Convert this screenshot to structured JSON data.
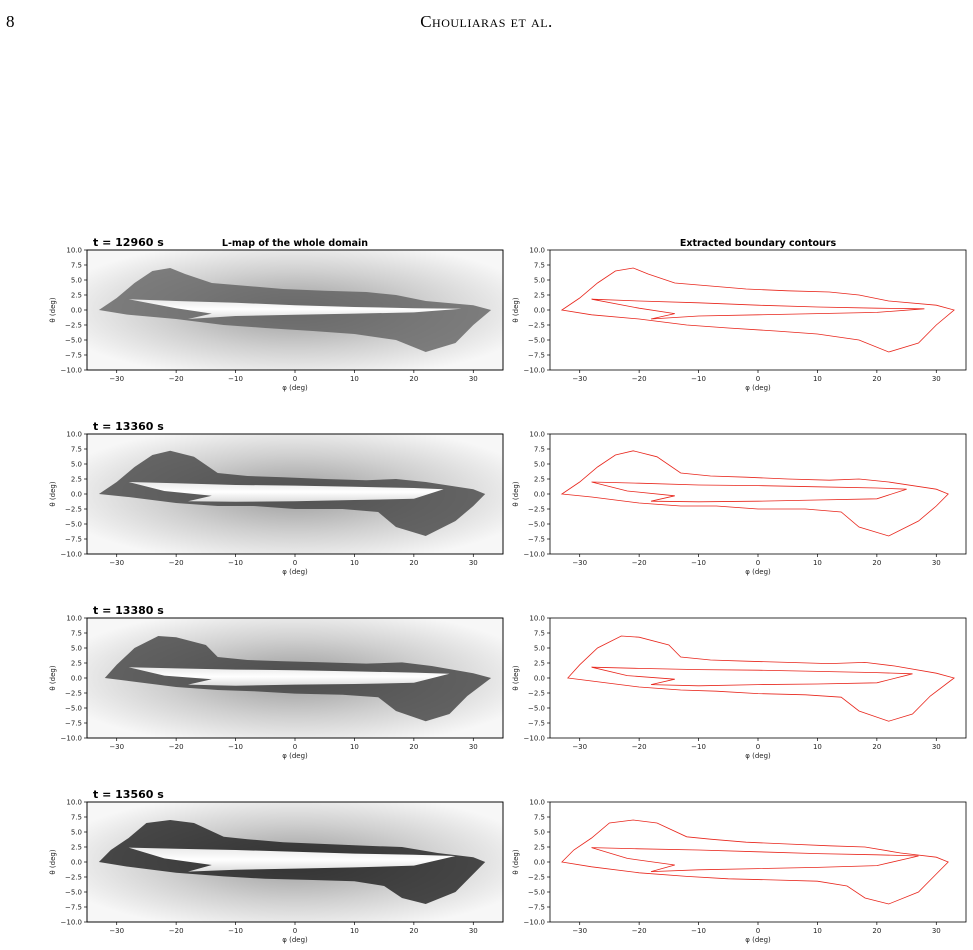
{
  "page": {
    "number": "8",
    "running_head": "Chouliaras et al."
  },
  "figure": {
    "column_titles": [
      "L-map of the whole domain",
      "Extracted boundary contours"
    ],
    "panels": [
      {
        "time_label": "t = 12960 s"
      },
      {
        "time_label": "t = 13360 s"
      },
      {
        "time_label": "t = 13380 s"
      },
      {
        "time_label": "t = 13560 s"
      }
    ],
    "contour_color": "#e8261c"
  },
  "chart_data": [
    {
      "type": "heatmap",
      "title": "L-map of the whole domain",
      "xlabel": "φ (deg)",
      "ylabel": "θ (deg)",
      "xlim": [
        -35,
        35
      ],
      "ylim": [
        -10,
        10
      ],
      "x_ticks": [
        "−30",
        "−20",
        "−10",
        "0",
        "10",
        "20",
        "30"
      ],
      "y_ticks": [
        "10.0",
        "7.5",
        "5.0",
        "2.5",
        "0.0",
        "−2.5",
        "−5.0",
        "−7.5",
        "−10.0"
      ],
      "panels": [
        "t = 12960 s",
        "t = 13360 s",
        "t = 13380 s",
        "t = 13560 s"
      ]
    },
    {
      "type": "line",
      "title": "Extracted boundary contours",
      "xlabel": "φ (deg)",
      "ylabel": "θ (deg)",
      "xlim": [
        -35,
        35
      ],
      "ylim": [
        -10,
        10
      ],
      "x_ticks": [
        "−30",
        "−20",
        "−10",
        "0",
        "10",
        "20",
        "30"
      ],
      "y_ticks": [
        "10.0",
        "7.5",
        "5.0",
        "2.5",
        "0.0",
        "−2.5",
        "−5.0",
        "−7.5",
        "−10.0"
      ],
      "series_color": "#e8261c",
      "contours": [
        {
          "outer": [
            [
              -33,
              0
            ],
            [
              -30,
              2
            ],
            [
              -27,
              4.5
            ],
            [
              -24,
              6.5
            ],
            [
              -21,
              7
            ],
            [
              -18.5,
              6
            ],
            [
              -14,
              4.5
            ],
            [
              -8,
              4
            ],
            [
              -2,
              3.5
            ],
            [
              5,
              3.2
            ],
            [
              12,
              3
            ],
            [
              17,
              2.5
            ],
            [
              22,
              1.5
            ],
            [
              30,
              0.8
            ],
            [
              33,
              0
            ],
            [
              30,
              -2.5
            ],
            [
              27,
              -5.5
            ],
            [
              22,
              -7
            ],
            [
              17,
              -5
            ],
            [
              10,
              -4
            ],
            [
              3,
              -3.5
            ],
            [
              -5,
              -3
            ],
            [
              -12,
              -2.5
            ],
            [
              -20,
              -1.5
            ],
            [
              -28,
              -0.8
            ],
            [
              -33,
              0
            ]
          ],
          "inner": [
            [
              -28,
              1.8
            ],
            [
              -20,
              1.5
            ],
            [
              -10,
              1.2
            ],
            [
              0,
              0.8
            ],
            [
              10,
              0.5
            ],
            [
              20,
              0.3
            ],
            [
              28,
              0.2
            ],
            [
              20,
              -0.4
            ],
            [
              10,
              -0.6
            ],
            [
              0,
              -0.8
            ],
            [
              -10,
              -1
            ],
            [
              -18,
              -1.5
            ],
            [
              -14,
              -0.6
            ],
            [
              -20,
              0.3
            ],
            [
              -28,
              1.8
            ]
          ]
        },
        {
          "outer": [
            [
              -33,
              0
            ],
            [
              -30,
              2
            ],
            [
              -27,
              4.5
            ],
            [
              -24,
              6.5
            ],
            [
              -21,
              7.2
            ],
            [
              -17,
              6.2
            ],
            [
              -13,
              3.5
            ],
            [
              -8,
              3
            ],
            [
              -2,
              2.8
            ],
            [
              5,
              2.5
            ],
            [
              12,
              2.3
            ],
            [
              17,
              2.5
            ],
            [
              22,
              2
            ],
            [
              30,
              0.8
            ],
            [
              32,
              0
            ],
            [
              30,
              -2
            ],
            [
              27,
              -4.5
            ],
            [
              22,
              -7
            ],
            [
              17,
              -5.5
            ],
            [
              14,
              -3
            ],
            [
              8,
              -2.5
            ],
            [
              0,
              -2.5
            ],
            [
              -7,
              -2
            ],
            [
              -13,
              -2
            ],
            [
              -20,
              -1.5
            ],
            [
              -28,
              -0.5
            ],
            [
              -33,
              0
            ]
          ],
          "inner": [
            [
              -28,
              2
            ],
            [
              -20,
              1.8
            ],
            [
              -10,
              1.5
            ],
            [
              0,
              1.4
            ],
            [
              10,
              1.2
            ],
            [
              20,
              1
            ],
            [
              25,
              0.8
            ],
            [
              20,
              -0.8
            ],
            [
              10,
              -1
            ],
            [
              0,
              -1.2
            ],
            [
              -10,
              -1.3
            ],
            [
              -18,
              -1.2
            ],
            [
              -14,
              -0.3
            ],
            [
              -22,
              0.5
            ],
            [
              -28,
              2
            ]
          ]
        },
        {
          "outer": [
            [
              -32,
              0
            ],
            [
              -30,
              2.2
            ],
            [
              -27,
              5
            ],
            [
              -23,
              7
            ],
            [
              -20,
              6.8
            ],
            [
              -15,
              5.5
            ],
            [
              -13,
              3.5
            ],
            [
              -8,
              3
            ],
            [
              -2,
              2.8
            ],
            [
              5,
              2.6
            ],
            [
              12,
              2.4
            ],
            [
              18,
              2.6
            ],
            [
              23,
              2
            ],
            [
              30,
              0.8
            ],
            [
              33,
              0
            ],
            [
              29,
              -3
            ],
            [
              26,
              -6
            ],
            [
              22,
              -7.2
            ],
            [
              17,
              -5.5
            ],
            [
              14,
              -3.2
            ],
            [
              8,
              -2.8
            ],
            [
              0,
              -2.6
            ],
            [
              -7,
              -2.2
            ],
            [
              -13,
              -2
            ],
            [
              -20,
              -1.5
            ],
            [
              -28,
              -0.5
            ],
            [
              -32,
              0
            ]
          ],
          "inner": [
            [
              -28,
              1.8
            ],
            [
              -20,
              1.6
            ],
            [
              -10,
              1.4
            ],
            [
              0,
              1.3
            ],
            [
              10,
              1.1
            ],
            [
              20,
              0.9
            ],
            [
              26,
              0.7
            ],
            [
              20,
              -0.8
            ],
            [
              10,
              -1
            ],
            [
              0,
              -1.1
            ],
            [
              -10,
              -1.3
            ],
            [
              -18,
              -1.1
            ],
            [
              -14,
              -0.2
            ],
            [
              -22,
              0.4
            ],
            [
              -28,
              1.8
            ]
          ]
        },
        {
          "outer": [
            [
              -33,
              0
            ],
            [
              -31,
              2
            ],
            [
              -28,
              4
            ],
            [
              -25,
              6.5
            ],
            [
              -21,
              7
            ],
            [
              -17,
              6.5
            ],
            [
              -12,
              4.2
            ],
            [
              -8,
              3.8
            ],
            [
              -2,
              3.3
            ],
            [
              5,
              3
            ],
            [
              12,
              2.7
            ],
            [
              18,
              2.5
            ],
            [
              24,
              1.5
            ],
            [
              30,
              0.8
            ],
            [
              32,
              0
            ],
            [
              30,
              -2
            ],
            [
              27,
              -5
            ],
            [
              22,
              -7
            ],
            [
              18,
              -6
            ],
            [
              15,
              -4
            ],
            [
              10,
              -3.2
            ],
            [
              3,
              -3
            ],
            [
              -5,
              -2.8
            ],
            [
              -12,
              -2.4
            ],
            [
              -20,
              -1.8
            ],
            [
              -28,
              -0.8
            ],
            [
              -33,
              0
            ]
          ],
          "inner": [
            [
              -28,
              2.4
            ],
            [
              -20,
              2.2
            ],
            [
              -10,
              2
            ],
            [
              0,
              1.7
            ],
            [
              10,
              1.4
            ],
            [
              20,
              1.2
            ],
            [
              27,
              1
            ],
            [
              20,
              -0.6
            ],
            [
              10,
              -0.9
            ],
            [
              0,
              -1.1
            ],
            [
              -10,
              -1.3
            ],
            [
              -18,
              -1.6
            ],
            [
              -14,
              -0.5
            ],
            [
              -22,
              0.6
            ],
            [
              -28,
              2.4
            ]
          ]
        }
      ]
    }
  ]
}
